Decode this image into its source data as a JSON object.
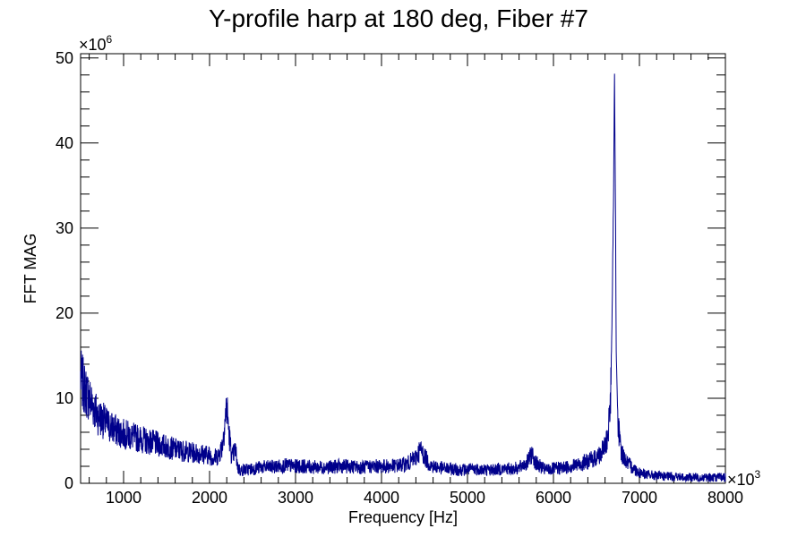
{
  "chart_data": {
    "type": "line",
    "title": "Y-profile harp at 180 deg, Fiber #7",
    "xlabel": "Frequency [Hz]",
    "ylabel": "FFT MAG",
    "x_multiplier": "×10",
    "x_multiplier_exp": "3",
    "y_multiplier": "×10",
    "y_multiplier_exp": "6",
    "xlim": [
      500,
      8000
    ],
    "ylim": [
      0,
      50.5
    ],
    "xticks": [
      1000,
      2000,
      3000,
      4000,
      5000,
      6000,
      7000,
      8000
    ],
    "xtick_labels": [
      "1000",
      "2000",
      "3000",
      "4000",
      "5000",
      "6000",
      "7000",
      "8000"
    ],
    "yticks": [
      0,
      10,
      20,
      30,
      40,
      50
    ],
    "ytick_labels": [
      "0",
      "10",
      "20",
      "30",
      "40",
      "50"
    ],
    "line_color": "#00008b",
    "grid": false,
    "series": [
      {
        "x": [
          500,
          550,
          600,
          650,
          700,
          800,
          900,
          1000,
          1100,
          1200,
          1300,
          1400,
          1500,
          1600,
          1700,
          1800,
          1900,
          2000,
          2050,
          2100,
          2150,
          2180,
          2200,
          2230,
          2260,
          2300,
          2330,
          2360,
          2400,
          2500,
          2600,
          2700,
          2800,
          2900,
          3000,
          3100,
          3200,
          3300,
          3400,
          3500,
          3600,
          3700,
          3800,
          3900,
          4000,
          4100,
          4200,
          4300,
          4400,
          4450,
          4500,
          4550,
          4600,
          4700,
          4800,
          4900,
          5000,
          5100,
          5200,
          5300,
          5400,
          5500,
          5600,
          5700,
          5750,
          5800,
          5900,
          6000,
          6100,
          6200,
          6300,
          6400,
          6500,
          6550,
          6600,
          6630,
          6660,
          6680,
          6700,
          6710,
          6720,
          6730,
          6750,
          6780,
          6800,
          6850,
          6900,
          6950,
          7000,
          7100,
          7200,
          7300,
          7400,
          7500,
          7600,
          7700,
          7800,
          7900,
          8000
        ],
        "y": [
          12.5,
          11,
          10,
          9,
          8,
          7,
          6.3,
          5.8,
          5.5,
          5.2,
          4.9,
          4.6,
          4.3,
          4.0,
          3.8,
          3.6,
          3.5,
          3.3,
          3.0,
          3.2,
          4.5,
          7.5,
          9.0,
          5.5,
          3.0,
          4.0,
          1.8,
          1.5,
          1.6,
          1.7,
          1.9,
          1.9,
          2.0,
          2.1,
          2.0,
          2.0,
          1.9,
          1.9,
          1.9,
          2.0,
          2.0,
          1.9,
          1.9,
          2.0,
          2.0,
          2.0,
          2.1,
          2.3,
          3.0,
          4.0,
          3.2,
          2.3,
          2.0,
          1.8,
          1.7,
          1.6,
          1.6,
          1.7,
          1.6,
          1.6,
          1.7,
          1.7,
          1.8,
          2.5,
          3.5,
          2.3,
          1.6,
          1.7,
          1.8,
          2.0,
          2.2,
          2.6,
          3.0,
          3.5,
          4.2,
          5.5,
          9.0,
          18.0,
          35.0,
          47.8,
          35.0,
          16.0,
          7.0,
          4.2,
          3.5,
          2.5,
          2.0,
          1.6,
          1.3,
          1.0,
          0.9,
          0.8,
          0.8,
          0.7,
          0.7,
          0.7,
          0.7,
          0.7,
          0.7
        ]
      }
    ]
  }
}
